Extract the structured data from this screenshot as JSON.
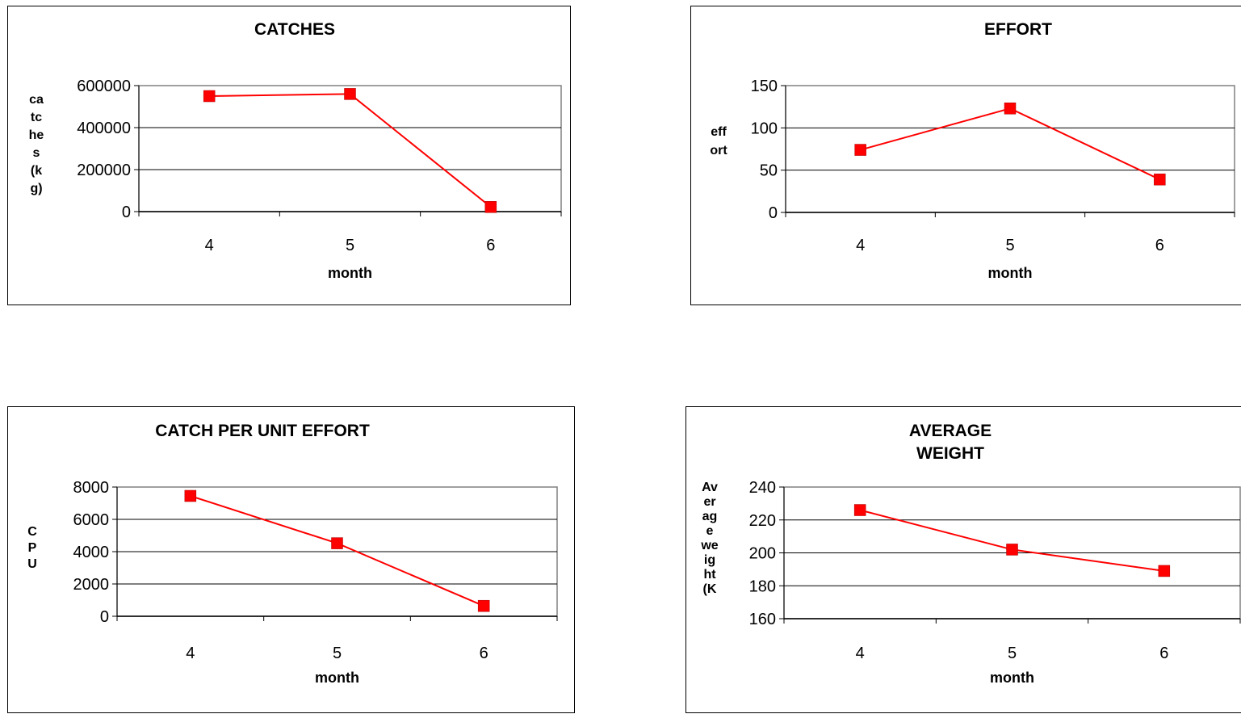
{
  "chart_data": [
    {
      "id": "catches",
      "type": "line",
      "title": [
        "CATCHES"
      ],
      "ylabel": [
        "ca",
        "tc",
        "he",
        "s",
        "(k",
        "g)"
      ],
      "xlabel": "month",
      "categories": [
        "4",
        "5",
        "6"
      ],
      "series": [
        {
          "values": [
            550000,
            560000,
            22000
          ],
          "color": "#ff0000"
        }
      ],
      "ylim": [
        0,
        600000
      ],
      "yticks": [
        "0",
        "200000",
        "400000",
        "600000"
      ],
      "grid": true,
      "legend": "none"
    },
    {
      "id": "effort",
      "type": "line",
      "title": [
        "EFFORT"
      ],
      "ylabel": [
        "eff",
        "ort"
      ],
      "xlabel": "month",
      "categories": [
        "4",
        "5",
        "6"
      ],
      "series": [
        {
          "values": [
            74,
            123,
            39
          ],
          "color": "#ff0000"
        }
      ],
      "ylim": [
        0,
        150
      ],
      "yticks": [
        "0",
        "50",
        "100",
        "150"
      ],
      "grid": true,
      "legend": "none"
    },
    {
      "id": "cpue",
      "type": "line",
      "title": [
        "CATCH PER UNIT EFFORT"
      ],
      "ylabel": [
        "C",
        "P",
        "U"
      ],
      "xlabel": "month",
      "categories": [
        "4",
        "5",
        "6"
      ],
      "series": [
        {
          "values": [
            7450,
            4520,
            640
          ],
          "color": "#ff0000"
        }
      ],
      "ylim": [
        0,
        8000
      ],
      "yticks": [
        "0",
        "2000",
        "4000",
        "6000",
        "8000"
      ],
      "grid": true,
      "legend": "none"
    },
    {
      "id": "weight",
      "type": "line",
      "title": [
        "AVERAGE",
        "WEIGHT"
      ],
      "ylabel": [
        "Av",
        "er",
        "ag",
        "e",
        "we",
        "ig",
        "ht",
        "(K"
      ],
      "xlabel": "month",
      "categories": [
        "4",
        "5",
        "6"
      ],
      "series": [
        {
          "values": [
            226,
            202,
            189
          ],
          "color": "#ff0000"
        }
      ],
      "ylim": [
        160,
        240
      ],
      "yticks": [
        "160",
        "180",
        "200",
        "220",
        "240"
      ],
      "grid": true,
      "legend": "none"
    }
  ]
}
